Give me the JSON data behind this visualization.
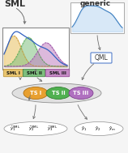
{
  "bg_color": "#f5f5f5",
  "sml_text": "SML",
  "generic_text": "generic",
  "qml_text": "QML",
  "sml_label_data": [
    {
      "label": "SML I",
      "fc": "#e8c060",
      "ec": "#b89030"
    },
    {
      "label": "SML II",
      "fc": "#70b870",
      "ec": "#408040"
    },
    {
      "label": "SML III",
      "fc": "#c080c0",
      "ec": "#904090"
    }
  ],
  "ts_data": [
    {
      "label": "TS I",
      "fc": "#e8a030",
      "ec": "#b07010"
    },
    {
      "label": "TS II",
      "fc": "#50b050",
      "ec": "#308030"
    },
    {
      "label": "TS III",
      "fc": "#b070c0",
      "ec": "#804090"
    }
  ],
  "arrow_color": "#707070",
  "generic_curve_color": "#4080c0",
  "generic_fill_color": "#aaccee",
  "sml_curve_color": "#3060c0",
  "dist_colors": [
    "#e8c060",
    "#80c080",
    "#c080c0"
  ],
  "dist_edge_colors": [
    "#c89030",
    "#40a040",
    "#9040a0"
  ]
}
